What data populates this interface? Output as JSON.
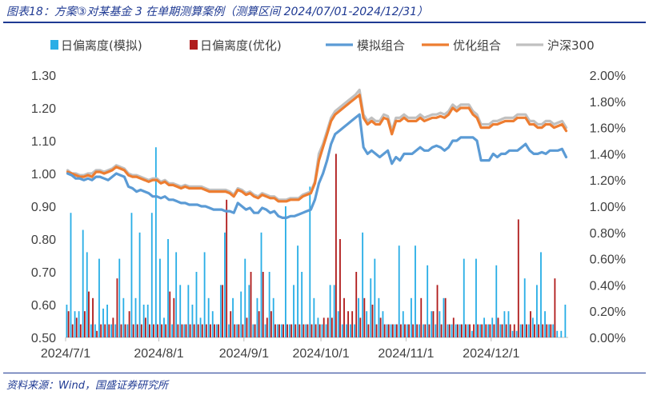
{
  "figure": {
    "title": "图表18：方案③对某基金 3 在单期测算案例（测算区间 2024/07/01-2024/12/31）",
    "source": "资料来源：Wind，国盛证券研究所"
  },
  "colors": {
    "bar_sim": "#29aee6",
    "bar_opt": "#b01c1c",
    "line_sim": "#5b9bd5",
    "line_opt": "#ed7d31",
    "line_hs300": "#c0c0c0"
  },
  "chart_data": {
    "type": "bar+line",
    "x_ticks": [
      "2024/7/1",
      "2024/8/1",
      "2024/9/1",
      "2024/10/1",
      "2024/11/1",
      "2024/12/1"
    ],
    "x_tick_index": [
      0,
      23,
      44,
      63,
      84,
      105
    ],
    "legend": [
      "日偏离度(模拟)",
      "日偏离度(优化)",
      "模拟组合",
      "优化组合",
      "沪深300"
    ],
    "y_left": {
      "min": 0.5,
      "max": 1.3,
      "ticks": [
        "0.50",
        "0.60",
        "0.70",
        "0.80",
        "0.90",
        "1.00",
        "1.10",
        "1.20",
        "1.30"
      ]
    },
    "y_right": {
      "min": 0.0,
      "max": 2.0,
      "ticks": [
        "0.00%",
        "0.20%",
        "0.40%",
        "0.60%",
        "0.80%",
        "1.00%",
        "1.20%",
        "1.40%",
        "1.60%",
        "1.80%",
        "2.00%"
      ]
    },
    "series": [
      {
        "name": "日偏离度(模拟)",
        "type": "bar",
        "axis": "right",
        "values": [
          0.25,
          0.95,
          0.2,
          0.2,
          0.82,
          0.65,
          0.1,
          0.1,
          0.6,
          0.22,
          0.25,
          0.1,
          0.1,
          0.6,
          0.3,
          0.1,
          0.95,
          0.3,
          0.8,
          0.25,
          0.25,
          0.95,
          1.45,
          0.6,
          0.15,
          0.75,
          0.1,
          0.65,
          0.4,
          0.1,
          0.4,
          0.25,
          0.5,
          0.15,
          0.65,
          0.3,
          0.2,
          0.1,
          0.4,
          0.8,
          0.1,
          0.3,
          0.1,
          0.35,
          0.6,
          0.4,
          0.1,
          0.3,
          0.8,
          0.1,
          0.5,
          0.3,
          0.1,
          0.1,
          1.0,
          0.1,
          0.4,
          0.7,
          0.5,
          0.1,
          1.15,
          0.3,
          0.15,
          0.1,
          0.1,
          0.4,
          0.4,
          0.2,
          0.1,
          0.1,
          0.1,
          0.1,
          0.3,
          0.8,
          0.2,
          0.45,
          0.6,
          0.3,
          0.2,
          0.1,
          0.1,
          0.1,
          0.7,
          0.2,
          0.1,
          0.3,
          0.7,
          0.1,
          0.1,
          0.55,
          0.2,
          0.1,
          0.2,
          0.3,
          0.1,
          0.1,
          0.1,
          0.1,
          0.6,
          0.1,
          0.05,
          0.6,
          0.1,
          0.15,
          0.1,
          0.15,
          0.55,
          0.1,
          0.2,
          0.2,
          0.05,
          0.05,
          0.1,
          0.45,
          0.1,
          0.15,
          0.4,
          0.65,
          0.2,
          0.1,
          0.1,
          0.05,
          0.05,
          0.25
        ]
      },
      {
        "name": "日偏离度(优化)",
        "type": "bar",
        "axis": "right",
        "values": [
          0.2,
          0.1,
          0.15,
          0.1,
          0.2,
          0.35,
          0.3,
          0.05,
          0.1,
          0.1,
          0.1,
          0.15,
          0.45,
          0.1,
          0.1,
          0.2,
          0.1,
          0.1,
          0.1,
          0.15,
          0.1,
          0.1,
          0.1,
          0.1,
          0.1,
          0.35,
          0.3,
          0.1,
          0.1,
          0.1,
          0.1,
          0.1,
          0.1,
          0.1,
          0.1,
          0.1,
          0.1,
          0.1,
          0.4,
          1.05,
          0.2,
          0.1,
          0.1,
          0.1,
          0.15,
          0.5,
          0.1,
          0.2,
          0.5,
          0.15,
          0.2,
          0.1,
          0.1,
          0.1,
          0.1,
          0.1,
          0.1,
          0.1,
          0.1,
          0.1,
          0.1,
          0.1,
          0.1,
          0.15,
          0.15,
          0.15,
          1.4,
          0.75,
          0.3,
          0.2,
          0.2,
          0.5,
          0.15,
          0.3,
          0.1,
          0.25,
          0.1,
          0.15,
          0.1,
          0.1,
          0.1,
          0.1,
          0.1,
          0.1,
          0.1,
          0.1,
          0.1,
          0.3,
          0.1,
          0.1,
          0.2,
          0.4,
          0.1,
          0.3,
          0.1,
          0.15,
          0.1,
          0.1,
          0.1,
          0.1,
          0.1,
          0.1,
          0.1,
          0.1,
          0.1,
          0.1,
          0.15,
          0.1,
          0.1,
          0.1,
          0.1,
          0.9,
          0.1,
          0.1,
          0.2,
          0.1,
          0.1,
          0.1,
          0.1,
          0.1,
          0.45
        ]
      },
      {
        "name": "模拟组合",
        "type": "line",
        "axis": "left",
        "values": [
          1.0,
          0.995,
          0.985,
          0.985,
          0.98,
          0.985,
          0.98,
          0.99,
          0.99,
          0.985,
          0.98,
          0.99,
          1.0,
          0.995,
          0.99,
          0.96,
          0.955,
          0.945,
          0.95,
          0.945,
          0.94,
          0.93,
          0.93,
          0.925,
          0.93,
          0.92,
          0.92,
          0.915,
          0.91,
          0.91,
          0.905,
          0.905,
          0.905,
          0.9,
          0.9,
          0.895,
          0.89,
          0.89,
          0.89,
          0.885,
          0.885,
          0.88,
          0.91,
          0.9,
          0.89,
          0.895,
          0.88,
          0.88,
          0.895,
          0.89,
          0.88,
          0.885,
          0.87,
          0.865,
          0.865,
          0.87,
          0.87,
          0.875,
          0.88,
          0.885,
          0.89,
          0.92,
          0.97,
          1.0,
          1.04,
          1.09,
          1.12,
          1.13,
          1.14,
          1.15,
          1.16,
          1.17,
          1.18,
          1.08,
          1.06,
          1.07,
          1.06,
          1.05,
          1.06,
          1.07,
          1.03,
          1.05,
          1.04,
          1.06,
          1.06,
          1.06,
          1.07,
          1.08,
          1.07,
          1.07,
          1.08,
          1.085,
          1.08,
          1.07,
          1.08,
          1.1,
          1.1,
          1.11,
          1.11,
          1.11,
          1.11,
          1.1,
          1.04,
          1.04,
          1.04,
          1.06,
          1.05,
          1.06,
          1.06,
          1.07,
          1.07,
          1.07,
          1.08,
          1.09,
          1.07,
          1.06,
          1.06,
          1.065,
          1.06,
          1.07,
          1.07,
          1.07,
          1.075,
          1.05
        ]
      },
      {
        "name": "优化组合",
        "type": "line",
        "axis": "left",
        "values": [
          1.005,
          1.0,
          0.995,
          0.99,
          0.99,
          0.995,
          0.99,
          1.005,
          1.005,
          1.0,
          1.005,
          1.01,
          1.02,
          1.015,
          1.01,
          0.995,
          0.99,
          0.99,
          0.985,
          0.98,
          0.975,
          0.98,
          0.98,
          0.97,
          0.975,
          0.965,
          0.965,
          0.96,
          0.955,
          0.96,
          0.955,
          0.955,
          0.955,
          0.955,
          0.95,
          0.945,
          0.945,
          0.945,
          0.945,
          0.945,
          0.94,
          0.93,
          0.95,
          0.945,
          0.935,
          0.94,
          0.93,
          0.925,
          0.935,
          0.93,
          0.925,
          0.925,
          0.915,
          0.915,
          0.915,
          0.92,
          0.92,
          0.92,
          0.93,
          0.935,
          0.94,
          0.97,
          1.04,
          1.08,
          1.12,
          1.16,
          1.18,
          1.19,
          1.2,
          1.21,
          1.22,
          1.23,
          1.24,
          1.17,
          1.15,
          1.16,
          1.15,
          1.15,
          1.17,
          1.165,
          1.12,
          1.16,
          1.16,
          1.17,
          1.16,
          1.16,
          1.16,
          1.17,
          1.16,
          1.165,
          1.17,
          1.17,
          1.175,
          1.17,
          1.18,
          1.2,
          1.19,
          1.2,
          1.2,
          1.2,
          1.18,
          1.17,
          1.14,
          1.14,
          1.14,
          1.15,
          1.15,
          1.155,
          1.16,
          1.16,
          1.16,
          1.17,
          1.17,
          1.17,
          1.15,
          1.15,
          1.14,
          1.14,
          1.15,
          1.15,
          1.14,
          1.145,
          1.15,
          1.13
        ]
      },
      {
        "name": "沪深300",
        "type": "line",
        "axis": "left",
        "values": [
          1.01,
          1.0,
          1.0,
          0.995,
          0.995,
          1.0,
          1.0,
          1.01,
          1.01,
          1.005,
          1.01,
          1.015,
          1.025,
          1.02,
          1.015,
          1.0,
          0.995,
          0.995,
          0.99,
          0.985,
          0.98,
          0.985,
          0.985,
          0.975,
          0.98,
          0.97,
          0.97,
          0.965,
          0.96,
          0.965,
          0.96,
          0.96,
          0.96,
          0.96,
          0.955,
          0.95,
          0.95,
          0.95,
          0.95,
          0.95,
          0.945,
          0.935,
          0.955,
          0.95,
          0.94,
          0.945,
          0.935,
          0.93,
          0.94,
          0.935,
          0.93,
          0.93,
          0.92,
          0.92,
          0.92,
          0.925,
          0.925,
          0.925,
          0.935,
          0.94,
          0.945,
          0.975,
          1.06,
          1.09,
          1.13,
          1.17,
          1.19,
          1.2,
          1.21,
          1.22,
          1.23,
          1.24,
          1.255,
          1.18,
          1.16,
          1.17,
          1.16,
          1.16,
          1.18,
          1.175,
          1.13,
          1.17,
          1.17,
          1.18,
          1.17,
          1.17,
          1.17,
          1.18,
          1.17,
          1.175,
          1.18,
          1.18,
          1.185,
          1.18,
          1.19,
          1.21,
          1.2,
          1.21,
          1.21,
          1.21,
          1.19,
          1.18,
          1.15,
          1.15,
          1.15,
          1.16,
          1.16,
          1.165,
          1.17,
          1.17,
          1.17,
          1.18,
          1.18,
          1.18,
          1.16,
          1.16,
          1.15,
          1.15,
          1.16,
          1.16,
          1.15,
          1.155,
          1.16,
          1.14
        ]
      }
    ]
  }
}
